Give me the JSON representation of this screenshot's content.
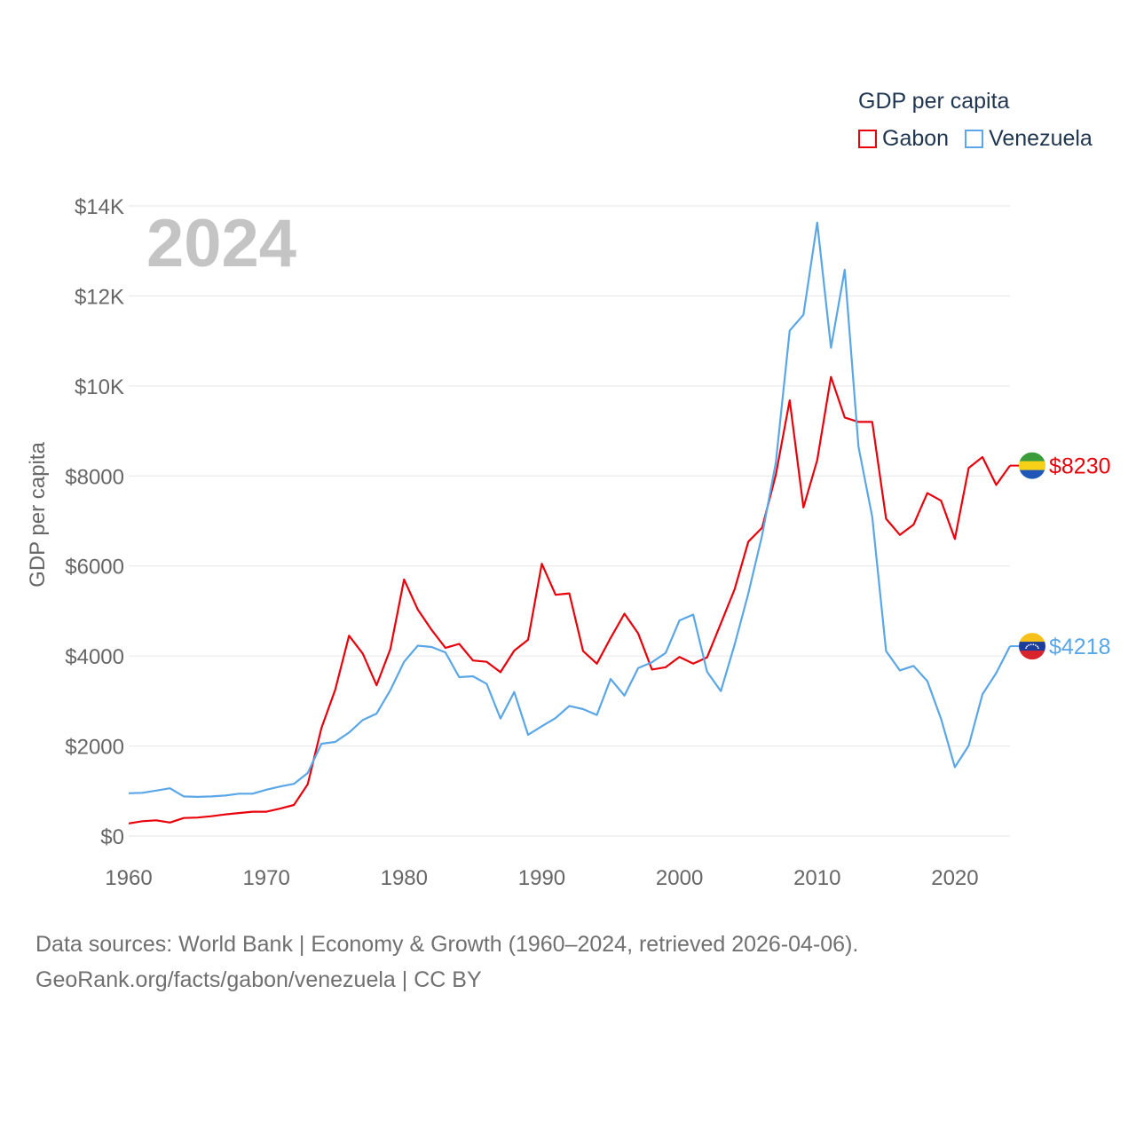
{
  "legend": {
    "title": "GDP per capita"
  },
  "sources": {
    "line1": "Data sources: World Bank | Economy & Growth (1960–2024, retrieved 2026-04-06).",
    "line2": "GeoRank.org/facts/gabon/venezuela | CC BY"
  },
  "chart_data": {
    "type": "line",
    "title": "2024",
    "xlabel": "",
    "ylabel": "GDP per capita",
    "xlim": [
      1960,
      2024
    ],
    "ylim": [
      0,
      14000
    ],
    "xticks": [
      1960,
      1970,
      1980,
      1990,
      2000,
      2010,
      2020
    ],
    "xtick_labels": [
      "1960",
      "1970",
      "1980",
      "1990",
      "2000",
      "2010",
      "2020"
    ],
    "yticks": [
      0,
      2000,
      4000,
      6000,
      8000,
      10000,
      12000,
      14000
    ],
    "ytick_labels": [
      "$0",
      "$2000",
      "$4000",
      "$6000",
      "$8000",
      "$10K",
      "$12K",
      "$14K"
    ],
    "grid": true,
    "legend_position": "top-right",
    "x": [
      1960,
      1961,
      1962,
      1963,
      1964,
      1965,
      1966,
      1967,
      1968,
      1969,
      1970,
      1971,
      1972,
      1973,
      1974,
      1975,
      1976,
      1977,
      1978,
      1979,
      1980,
      1981,
      1982,
      1983,
      1984,
      1985,
      1986,
      1987,
      1988,
      1989,
      1990,
      1991,
      1992,
      1993,
      1994,
      1995,
      1996,
      1997,
      1998,
      1999,
      2000,
      2001,
      2002,
      2003,
      2004,
      2005,
      2006,
      2007,
      2008,
      2009,
      2010,
      2011,
      2012,
      2013,
      2014,
      2015,
      2016,
      2017,
      2018,
      2019,
      2020,
      2021,
      2022,
      2023,
      2024
    ],
    "series": [
      {
        "name": "Gabon",
        "color": "#e8000b",
        "end_label": "$8230",
        "values": [
          280,
          330,
          350,
          300,
          400,
          410,
          440,
          480,
          510,
          540,
          540,
          610,
          690,
          1150,
          2400,
          3250,
          4450,
          4050,
          3350,
          4150,
          5700,
          5030,
          4580,
          4180,
          4270,
          3900,
          3870,
          3640,
          4120,
          4360,
          6050,
          5360,
          5390,
          4110,
          3830,
          4400,
          4940,
          4500,
          3700,
          3750,
          3980,
          3830,
          3970,
          4720,
          5480,
          6540,
          6850,
          8030,
          9680,
          7300,
          8350,
          10200,
          9300,
          9200,
          9200,
          7050,
          6690,
          6920,
          7620,
          7450,
          6600,
          8180,
          8420,
          7800,
          8230
        ]
      },
      {
        "name": "Venezuela",
        "color": "#5aa6e6",
        "end_label": "$4218",
        "values": [
          950,
          960,
          1010,
          1060,
          880,
          870,
          880,
          900,
          940,
          940,
          1030,
          1100,
          1160,
          1400,
          2050,
          2090,
          2300,
          2580,
          2720,
          3240,
          3870,
          4230,
          4200,
          4080,
          3530,
          3550,
          3380,
          2610,
          3200,
          2250,
          2440,
          2620,
          2890,
          2820,
          2690,
          3490,
          3120,
          3730,
          3860,
          4070,
          4790,
          4920,
          3650,
          3220,
          4250,
          5390,
          6680,
          8300,
          11230,
          11580,
          13630,
          10850,
          12580,
          8650,
          7090,
          4110,
          3680,
          3780,
          3440,
          2600,
          1530,
          2010,
          3150,
          3620,
          4218
        ]
      }
    ]
  }
}
